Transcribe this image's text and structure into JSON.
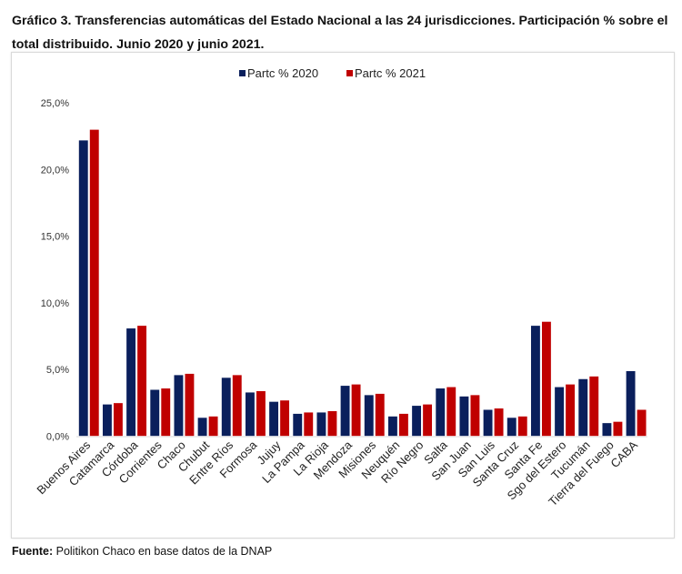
{
  "title": "Gráfico 3. Transferencias automáticas del Estado Nacional a las 24 jurisdicciones. Participación % sobre el total distribuido. Junio 2020 y junio 2021.",
  "footer": {
    "label": "Fuente:",
    "text": " Politikon Chaco en base datos de la DNAP"
  },
  "chart_data": {
    "type": "bar",
    "title": "",
    "xlabel": "",
    "ylabel": "",
    "ylim": [
      0,
      25
    ],
    "yticks": [
      "0,0%",
      "5,0%",
      "10,0%",
      "15,0%",
      "20,0%",
      "25,0%"
    ],
    "grid": false,
    "legend": "top-center",
    "categories": [
      "Buenos Aires",
      "Catamarca",
      "Córdoba",
      "Corrientes",
      "Chaco",
      "Chubut",
      "Entre Ríos",
      "Formosa",
      "Jujuy",
      "La Pampa",
      "La Rioja",
      "Mendoza",
      "Misiones",
      "Neuquén",
      "Río Negro",
      "Salta",
      "San Juan",
      "San Luis",
      "Santa Cruz",
      "Santa Fe",
      "Sgo del Estero",
      "Tucumán",
      "Tierra del Fuego",
      "CABA"
    ],
    "series": [
      {
        "name": "Partc % 2020",
        "color": "#0a1f5c",
        "values": [
          22.2,
          2.4,
          8.1,
          3.5,
          4.6,
          1.4,
          4.4,
          3.3,
          2.6,
          1.7,
          1.8,
          3.8,
          3.1,
          1.5,
          2.3,
          3.6,
          3.0,
          2.0,
          1.4,
          8.3,
          3.7,
          4.3,
          1.0,
          4.9
        ]
      },
      {
        "name": "Partc % 2021",
        "color": "#c00000",
        "values": [
          23.0,
          2.5,
          8.3,
          3.6,
          4.7,
          1.5,
          4.6,
          3.4,
          2.7,
          1.8,
          1.9,
          3.9,
          3.2,
          1.7,
          2.4,
          3.7,
          3.1,
          2.1,
          1.5,
          8.6,
          3.9,
          4.5,
          1.1,
          2.0
        ]
      }
    ]
  }
}
